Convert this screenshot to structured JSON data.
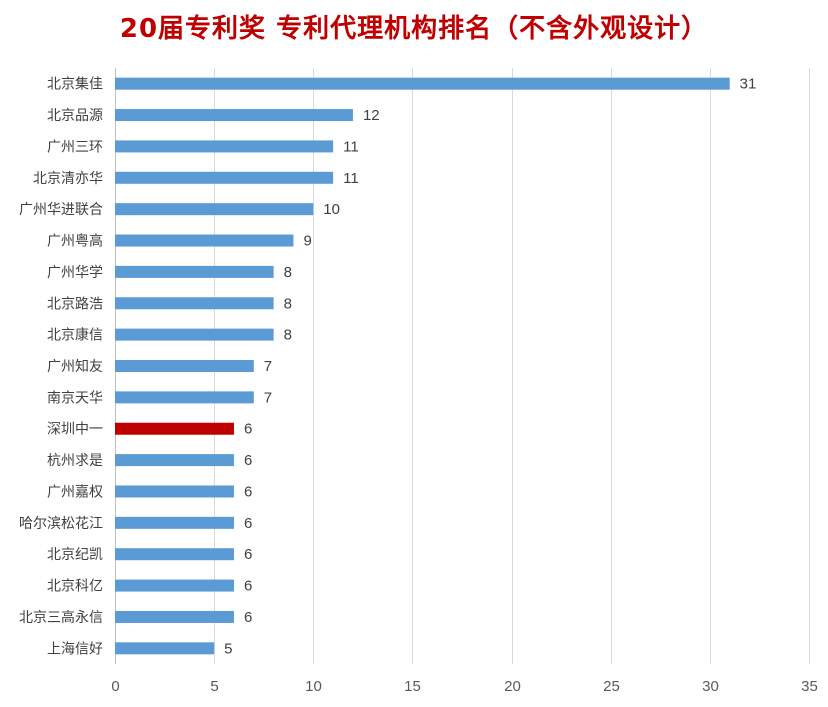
{
  "chart_data": {
    "type": "bar",
    "orientation": "horizontal",
    "title": "20届专利奖 专利代理机构排名（不含外观设计）",
    "categories": [
      "北京集佳",
      "北京品源",
      "广州三环",
      "北京清亦华",
      "广州华进联合",
      "广州粤高",
      "广州华学",
      "北京路浩",
      "北京康信",
      "广州知友",
      "南京天华",
      "深圳中一",
      "杭州求是",
      "广州嘉权",
      "哈尔滨松花江",
      "北京纪凯",
      "北京科亿",
      "北京三高永信",
      "上海信好"
    ],
    "values": [
      31,
      12,
      11,
      11,
      10,
      9,
      8,
      8,
      8,
      7,
      7,
      6,
      6,
      6,
      6,
      6,
      6,
      6,
      5
    ],
    "highlight_category": "深圳中一",
    "colors": {
      "bar": "#5b9bd5",
      "highlight": "#c00000",
      "title": "#c00000"
    },
    "xlim": [
      0,
      35
    ],
    "xticks": [
      0,
      5,
      10,
      15,
      20,
      25,
      30,
      35
    ],
    "xlabel": "",
    "ylabel": "",
    "grid": "vertical",
    "data_labels": true
  }
}
